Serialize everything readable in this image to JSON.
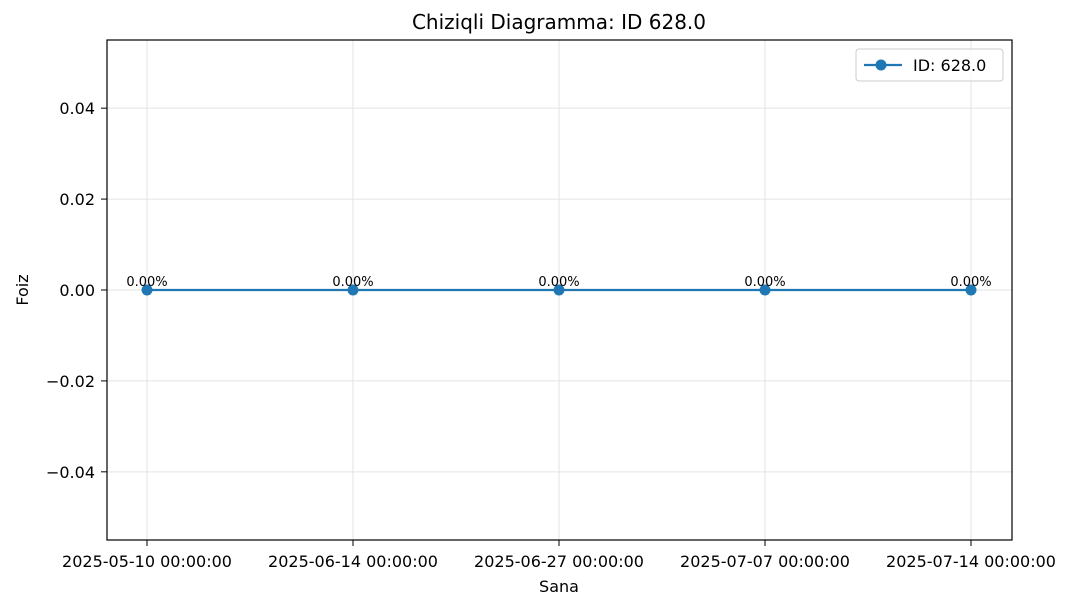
{
  "chart_data": {
    "type": "line",
    "title": "Chiziqli Diagramma: ID 628.0",
    "xlabel": "Sana",
    "ylabel": "Foiz",
    "categories": [
      "2025-05-10 00:00:00",
      "2025-06-14 00:00:00",
      "2025-06-27 00:00:00",
      "2025-07-07 00:00:00",
      "2025-07-14 00:00:00"
    ],
    "series": [
      {
        "name": "ID: 628.0",
        "values": [
          0.0,
          0.0,
          0.0,
          0.0,
          0.0
        ],
        "data_labels": [
          "0.00%",
          "0.00%",
          "0.00%",
          "0.00%",
          "0.00%"
        ],
        "color": "#1f77b4",
        "marker": "circle"
      }
    ],
    "ylim": [
      -0.055,
      0.055
    ],
    "yticks": [
      -0.04,
      -0.02,
      0.0,
      0.02,
      0.04
    ],
    "ytick_labels": [
      "−0.04",
      "−0.02",
      "0.00",
      "0.02",
      "0.04"
    ],
    "grid": true,
    "legend_position": "top-right"
  }
}
